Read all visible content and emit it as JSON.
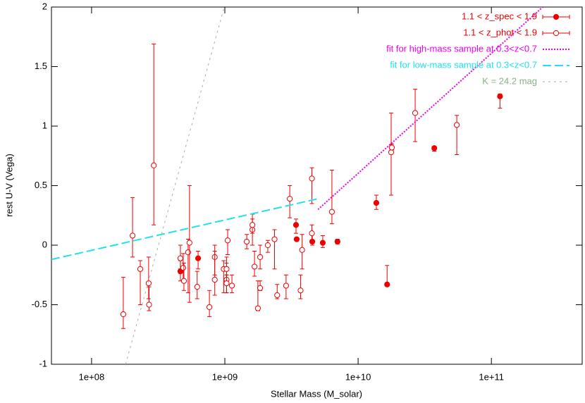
{
  "chart_data": {
    "type": "scatter",
    "xlabel": "Stellar Mass (M_solar)",
    "ylabel": "rest U-V (Vega)",
    "xscale": "log",
    "xlim": [
      50000000,
      480000000000
    ],
    "ylim": [
      -1,
      2
    ],
    "xticks": [
      {
        "value": 100000000,
        "label": "1e+08"
      },
      {
        "value": 1000000000,
        "label": "1e+09"
      },
      {
        "value": 10000000000,
        "label": "1e+10"
      },
      {
        "value": 100000000000,
        "label": "1e+11"
      }
    ],
    "yticks": [
      -1,
      -0.5,
      0,
      0.5,
      1,
      1.5,
      2
    ],
    "legend": "upper right",
    "series": [
      {
        "name": "1.1 < z_spec < 1.9",
        "color": "#ee0000",
        "marker": "filled",
        "x": [
          464000000,
          630000000,
          3420000000,
          3460000000,
          4530000000,
          5430000000,
          7000000000,
          13700000000,
          16500000000,
          37300000000,
          116000000000
        ],
        "values": [
          -0.22,
          -0.11,
          0.17,
          0.05,
          0.03,
          0.02,
          0.03,
          0.355,
          -0.33,
          0.815,
          1.25
        ],
        "y_low": [
          -0.3,
          -0.2,
          0.1,
          0.05,
          0,
          -0.02,
          0.01,
          0.3,
          -0.33,
          0.79,
          1.15
        ],
        "y_high": [
          -0.13,
          -0.05,
          0.22,
          0.05,
          0.1,
          0.08,
          0.05,
          0.42,
          -0.17,
          0.83,
          1.27
        ]
      },
      {
        "name": "1.1 < z_phot < 1.9",
        "color": "#ee0000",
        "marker": "open",
        "x": [
          173000000,
          203000000,
          232000000,
          268000000,
          270000000,
          293000000,
          464000000,
          487000000,
          493000000,
          530000000,
          543000000,
          620000000,
          766000000,
          840000000,
          840000000,
          980000000,
          1030000000,
          1030000000,
          1050000000,
          1030000000,
          1130000000,
          1460000000,
          1610000000,
          1610000000,
          1670000000,
          1770000000,
          1840000000,
          1840000000,
          2100000000,
          2360000000,
          2470000000,
          2880000000,
          3070000000,
          3700000000,
          3800000000,
          4500000000,
          4500000000,
          6360000000,
          17700000000,
          17900000000,
          26800000000,
          55000000000
        ],
        "values": [
          -0.58,
          0.08,
          -0.2,
          -0.32,
          -0.5,
          0.67,
          -0.11,
          -0.19,
          -0.3,
          -0.06,
          0.02,
          -0.35,
          -0.52,
          -0.1,
          -0.29,
          -0.2,
          -0.29,
          -0.2,
          0.04,
          -0.32,
          -0.34,
          0.03,
          0.13,
          0.17,
          -0.18,
          -0.53,
          -0.1,
          -0.36,
          0,
          0.05,
          -0.42,
          -0.34,
          0.39,
          -0.38,
          -0.04,
          0.56,
          0.1,
          0.28,
          0.78,
          0.82,
          1.11,
          1.01
        ],
        "y_low": [
          -0.7,
          -0.1,
          -0.5,
          -0.45,
          -0.55,
          0.17,
          -0.2,
          -0.3,
          -0.38,
          -0.4,
          -0.48,
          -0.45,
          -0.6,
          -0.25,
          -0.42,
          -0.4,
          -0.4,
          -0.25,
          -0.08,
          -0.4,
          -0.4,
          -0.03,
          0,
          0.1,
          -0.26,
          -0.55,
          -0.2,
          -0.38,
          -0.06,
          -0.2,
          -0.45,
          -0.45,
          0.23,
          -0.45,
          -0.2,
          0.35,
          0.04,
          0.18,
          0.42,
          0.8,
          0.87,
          0.76
        ],
        "y_high": [
          -0.27,
          0.4,
          -0.13,
          -0.1,
          -0.35,
          1.69,
          0,
          -0.07,
          -0.15,
          0.05,
          0.5,
          -0.22,
          -0.38,
          0,
          -0.05,
          -0.13,
          -0.1,
          -0.15,
          0.13,
          -0.25,
          -0.25,
          0.09,
          0.26,
          0.22,
          -0.05,
          -0.3,
          0,
          -0.3,
          0.04,
          0.13,
          -0.33,
          -0.25,
          0.5,
          -0.25,
          0.09,
          0.65,
          0.17,
          0.63,
          1.11,
          0.85,
          1.31,
          1.09
        ]
      },
      {
        "name": "fit for high-mass sample at 0.3<z<0.7",
        "color": "#ee00ee",
        "marker": "line",
        "dash": "2,2",
        "x": [
          5000000000,
          243000000000
        ],
        "values": [
          0.3,
          2
        ]
      },
      {
        "name": "fit for low-mass sample at 0.3<z<0.7",
        "color": "#22e0ee",
        "marker": "line",
        "dash": "12,5",
        "x": [
          50000000,
          5000000000
        ],
        "values": [
          -0.12,
          0.39
        ]
      },
      {
        "name": "K = 24.2 mag",
        "color": "#aaaaaa",
        "text_color": "#88b088",
        "marker": "line",
        "dash": "3,5",
        "x": [
          180000000,
          990000000
        ],
        "values": [
          -1,
          2
        ]
      }
    ]
  }
}
